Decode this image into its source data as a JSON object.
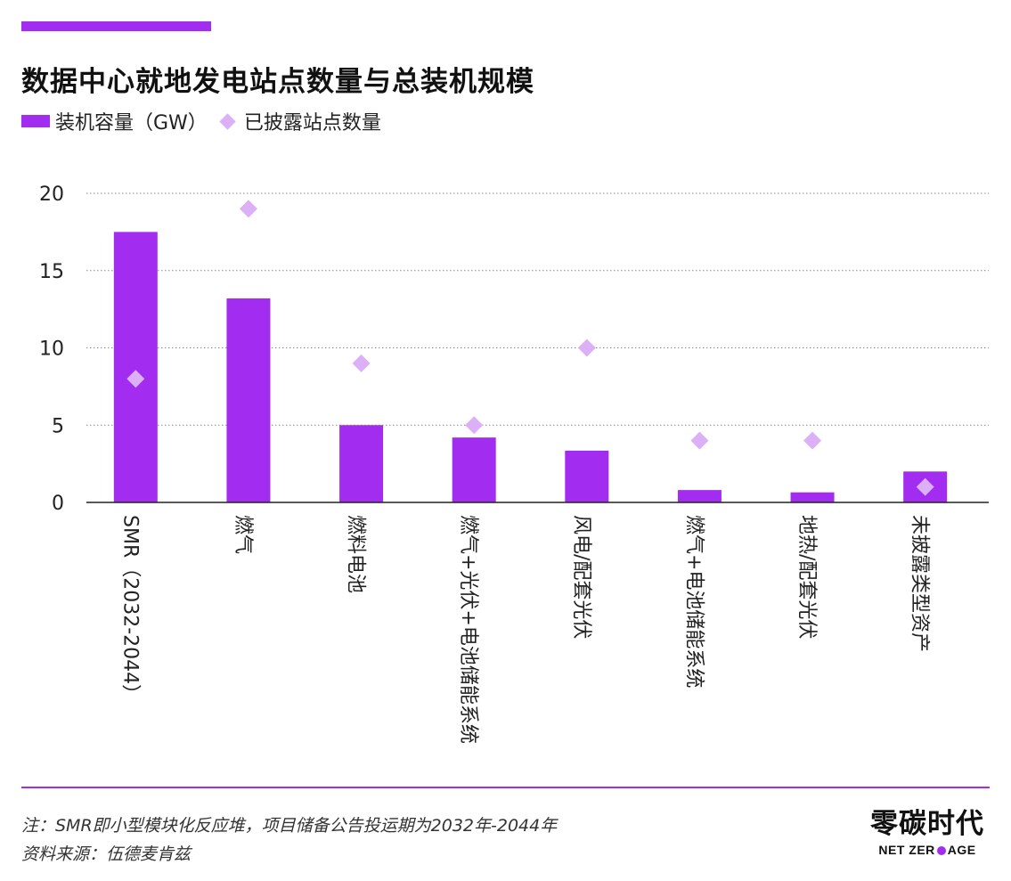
{
  "colors": {
    "accent": "#a22df0",
    "bar": "#a22df0",
    "marker": "#dcb0f6",
    "gridline": "#8a8a8a",
    "axis": "#222222",
    "rule": "#a22df0"
  },
  "header": {
    "title": "数据中心就地发电站点数量与总装机规模"
  },
  "legend": {
    "bar_label": "装机容量（GW）",
    "marker_label": "已披露站点数量"
  },
  "chart_data": {
    "type": "bar",
    "title": "数据中心就地发电站点数量与总装机规模",
    "xlabel": "",
    "ylabel": "",
    "ylim": [
      0,
      20
    ],
    "yticks": [
      0,
      5,
      10,
      15,
      20
    ],
    "grid": true,
    "legend_position": "top-left",
    "categories": [
      "SMR（2032-2044）",
      "燃气",
      "燃料电池",
      "燃气+光伏+电池储能系统",
      "风电/配套光伏",
      "燃气+电池储能系统",
      "地热/配套光伏",
      "未披露类型资产"
    ],
    "series": [
      {
        "name": "装机容量（GW）",
        "type": "bar",
        "values": [
          17.5,
          13.2,
          5.0,
          4.2,
          3.35,
          0.8,
          0.65,
          2.0
        ]
      },
      {
        "name": "已披露站点数量",
        "type": "scatter",
        "marker": "diamond",
        "values": [
          8,
          19,
          9,
          5,
          10,
          4,
          4,
          1
        ]
      }
    ]
  },
  "footer": {
    "note": "注：SMR即小型模块化反应堆，项目储备公告投运期为2032年-2044年",
    "source": "资料来源：伍德麦肯兹"
  },
  "brand": {
    "name_cn": "零碳时代",
    "name_en_left": "NET ZER",
    "name_en_right": "AGE"
  }
}
